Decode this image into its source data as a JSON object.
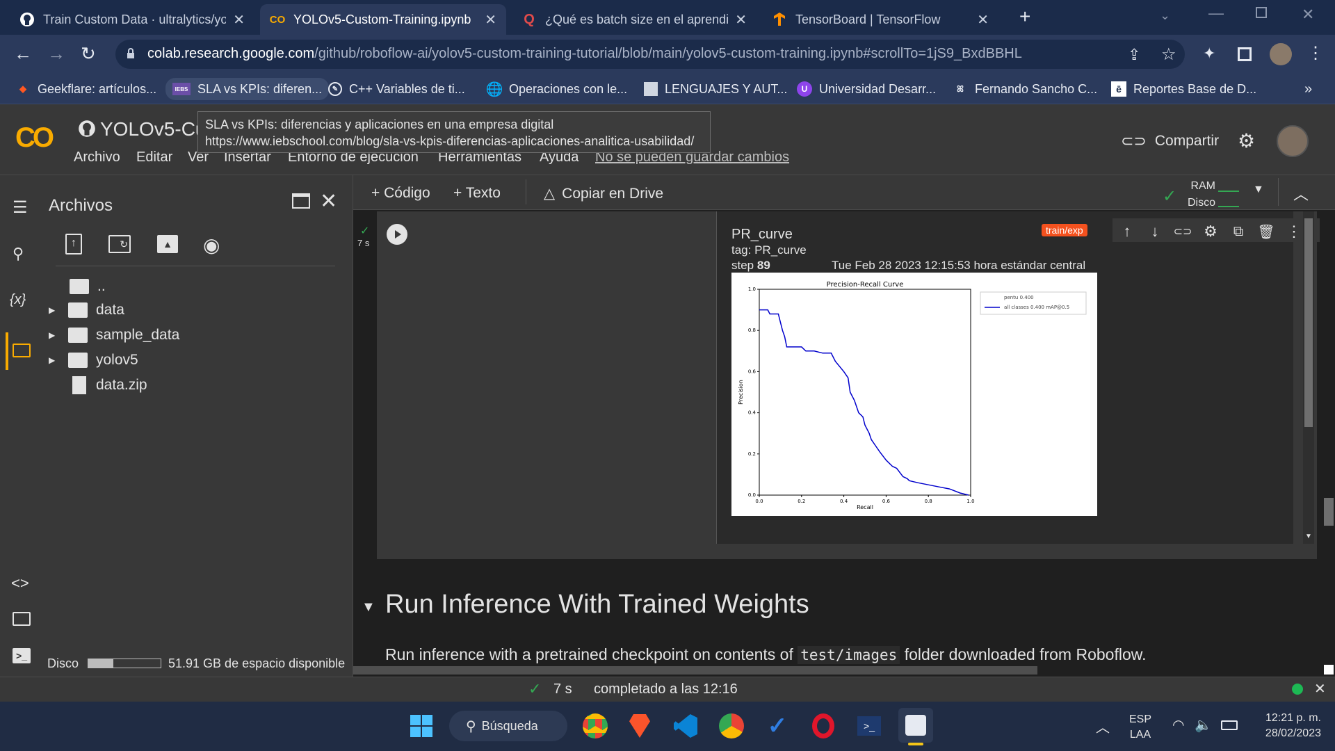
{
  "browser": {
    "tabs": [
      {
        "title": "Train Custom Data · ultralytics/yo",
        "icon": "github-icon"
      },
      {
        "title": "YOLOv5-Custom-Training.ipynb",
        "icon": "colab-icon"
      },
      {
        "title": "¿Qué es batch size en el aprendiz",
        "icon": "quora-icon"
      },
      {
        "title": "TensorBoard | TensorFlow",
        "icon": "tensorflow-icon"
      }
    ],
    "url_host": "colab.research.google.com",
    "url_path": "/github/roboflow-ai/yolov5-custom-training-tutorial/blob/main/yolov5-custom-training.ipynb#scrollTo=1jS9_BxdBBHL",
    "bookmarks": [
      "Geekflare: artículos...",
      "SLA vs KPIs: diferen...",
      "C++ Variables de ti...",
      "Operaciones con le...",
      "LENGUAJES Y AUT...",
      "Universidad Desarr...",
      "Fernando Sancho C...",
      "Reportes Base de D..."
    ],
    "bookmarks_more": "»",
    "tooltip": {
      "title": "SLA vs KPIs: diferencias y aplicaciones en una empresa digital",
      "url": "https://www.iebschool.com/blog/sla-vs-kpis-diferencias-aplicaciones-analitica-usabilidad/"
    }
  },
  "colab": {
    "logo": "CO",
    "notebook_title": "YOLOv5-Cu",
    "menu": [
      "Archivo",
      "Editar",
      "Ver",
      "Insertar",
      "Entorno de ejecución",
      "Herramientas",
      "Ayuda"
    ],
    "cannot_save": "No se pueden guardar cambios",
    "share_label": "Compartir",
    "toolbar": {
      "code": "+ Código",
      "text": "+ Texto",
      "drive": "Copiar en Drive",
      "ram": "RAM",
      "disk": "Disco"
    }
  },
  "files_panel": {
    "title": "Archivos",
    "parent": "..",
    "items": [
      {
        "name": "data",
        "type": "folder"
      },
      {
        "name": "sample_data",
        "type": "folder"
      },
      {
        "name": "yolov5",
        "type": "folder"
      },
      {
        "name": "data.zip",
        "type": "file"
      }
    ],
    "disk_label": "Disco",
    "disk_free": "51.91 GB de espacio disponible",
    "disk_used_fraction": 0.35
  },
  "cell": {
    "exec_time": "7 s",
    "output": {
      "title": "PR_curve",
      "tag": "tag: PR_curve",
      "step_label": "step",
      "step_value": "89",
      "timestamp": "Tue Feb 28 2023 12:15:53 hora estándar central",
      "run_badge": "train/exp"
    }
  },
  "section": {
    "heading": "Run Inference With Trained Weights",
    "text_before": "Run inference with a pretrained checkpoint on contents of",
    "code": "test/images",
    "text_after": "folder downloaded from Roboflow."
  },
  "status": {
    "exec_time": "7 s",
    "completed": "completado a las 12:16"
  },
  "taskbar": {
    "search": "Búsqueda",
    "lang1": "ESP",
    "lang2": "LAA",
    "time": "12:21 p. m.",
    "date": "28/02/2023"
  },
  "chart_data": {
    "type": "line",
    "title": "Precision-Recall Curve",
    "xlabel": "Recall",
    "ylabel": "Precision",
    "xlim": [
      0,
      1
    ],
    "ylim": [
      0,
      1
    ],
    "x_ticks": [
      "0.0",
      "0.2",
      "0.4",
      "0.6",
      "0.8",
      "1.0"
    ],
    "y_ticks": [
      "0.0",
      "0.2",
      "0.4",
      "0.6",
      "0.8",
      "1.0"
    ],
    "legend_position": "top-right",
    "legend": [
      "pentu 0.400",
      "all classes 0.400 mAP@0.5"
    ],
    "series": [
      {
        "name": "all classes 0.400 mAP@0.5",
        "color": "#0000cc",
        "x": [
          0.0,
          0.04,
          0.05,
          0.09,
          0.1,
          0.11,
          0.12,
          0.13,
          0.16,
          0.2,
          0.22,
          0.23,
          0.26,
          0.3,
          0.34,
          0.36,
          0.4,
          0.42,
          0.43,
          0.45,
          0.47,
          0.49,
          0.5,
          0.52,
          0.53,
          0.55,
          0.57,
          0.6,
          0.63,
          0.65,
          0.68,
          0.7,
          0.71,
          0.75,
          0.8,
          0.85,
          0.9,
          0.95,
          0.99
        ],
        "y": [
          0.9,
          0.9,
          0.88,
          0.88,
          0.84,
          0.8,
          0.77,
          0.72,
          0.72,
          0.72,
          0.7,
          0.7,
          0.7,
          0.69,
          0.69,
          0.65,
          0.6,
          0.57,
          0.5,
          0.46,
          0.4,
          0.38,
          0.34,
          0.3,
          0.27,
          0.24,
          0.21,
          0.17,
          0.14,
          0.13,
          0.09,
          0.08,
          0.07,
          0.06,
          0.05,
          0.04,
          0.03,
          0.01,
          0.0
        ]
      }
    ]
  }
}
